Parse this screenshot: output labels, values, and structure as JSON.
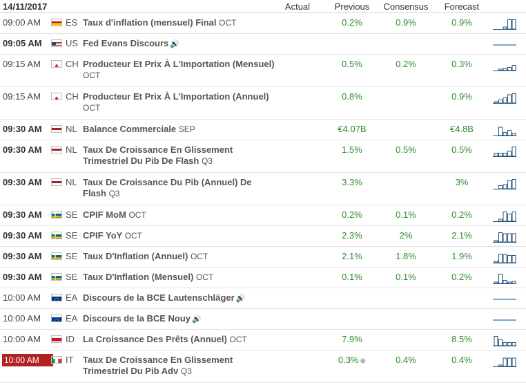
{
  "header": {
    "date": "14/11/2017",
    "actual": "Actual",
    "previous": "Previous",
    "consensus": "Consensus",
    "forecast": "Forecast"
  },
  "rows": [
    {
      "time": "09:00 AM",
      "bold": false,
      "badge": false,
      "flag": "es",
      "country": "ES",
      "event": "Taux d'inflation (mensuel) Final",
      "period": "OCT",
      "speaker": false,
      "previous": "0.2%",
      "consensus": "0.9%",
      "forecast": "0.9%",
      "chart": "bars",
      "bars": [
        0.2,
        0.9,
        0.9
      ],
      "two_line": false
    },
    {
      "time": "09:05 AM",
      "bold": true,
      "badge": false,
      "flag": "us",
      "country": "US",
      "event": "Fed Evans Discours",
      "period": "",
      "speaker": true,
      "previous": "",
      "consensus": "",
      "forecast": "",
      "chart": "line",
      "bars": [],
      "two_line": false
    },
    {
      "time": "09:15 AM",
      "bold": false,
      "badge": false,
      "flag": "ch",
      "country": "CH",
      "event": "Producteur Et Prix À L'Importation (Mensuel)",
      "period": "OCT",
      "speaker": false,
      "previous": "0.5%",
      "consensus": "0.2%",
      "forecast": "0.3%",
      "chart": "bars",
      "bars": [
        0.1,
        0.2,
        0.3,
        0.5
      ],
      "two_line": true
    },
    {
      "time": "09:15 AM",
      "bold": false,
      "badge": false,
      "flag": "ch",
      "country": "CH",
      "event": "Producteur Et Prix À L'Importation (Annuel)",
      "period": "OCT",
      "speaker": false,
      "previous": "0.8%",
      "consensus": "",
      "forecast": "0.9%",
      "chart": "bars",
      "bars": [
        0.1,
        0.3,
        0.5,
        0.8,
        0.9
      ],
      "two_line": true
    },
    {
      "time": "09:30 AM",
      "bold": true,
      "badge": false,
      "flag": "nl",
      "country": "NL",
      "event": "Balance Commerciale",
      "period": "SEP",
      "speaker": false,
      "previous": "€4.07B",
      "consensus": "",
      "forecast": "€4.8B",
      "chart": "bars",
      "bars": [
        0.8,
        0.3,
        0.5,
        0.2
      ],
      "two_line": false
    },
    {
      "time": "09:30 AM",
      "bold": true,
      "badge": false,
      "flag": "nl",
      "country": "NL",
      "event": "Taux De Croissance En Glissement Trimestriel Du Pib De Flash",
      "period": "Q3",
      "speaker": false,
      "previous": "1.5%",
      "consensus": "0.5%",
      "forecast": "0.5%",
      "chart": "bars",
      "bars": [
        0.3,
        0.3,
        0.3,
        0.5,
        0.9
      ],
      "two_line": true
    },
    {
      "time": "09:30 AM",
      "bold": true,
      "badge": false,
      "flag": "nl",
      "country": "NL",
      "event": "Taux De Croissance Du Pib (Annuel) De Flash",
      "period": "Q3",
      "speaker": false,
      "previous": "3.3%",
      "consensus": "",
      "forecast": "3%",
      "chart": "bars",
      "bars": [
        0.3,
        0.4,
        0.8,
        0.9
      ],
      "two_line": true
    },
    {
      "time": "09:30 AM",
      "bold": true,
      "badge": false,
      "flag": "se",
      "country": "SE",
      "event": "CPIF MoM",
      "period": "OCT",
      "speaker": false,
      "previous": "0.2%",
      "consensus": "0.1%",
      "forecast": "0.2%",
      "chart": "bars",
      "bars": [
        0.2,
        0.9,
        0.7,
        0.9
      ],
      "two_line": false
    },
    {
      "time": "09:30 AM",
      "bold": true,
      "badge": false,
      "flag": "se",
      "country": "SE",
      "event": "CPIF YoY",
      "period": "OCT",
      "speaker": false,
      "previous": "2.3%",
      "consensus": "2%",
      "forecast": "2.1%",
      "chart": "bars",
      "bars": [
        0.1,
        0.9,
        0.8,
        0.8,
        0.8
      ],
      "two_line": false
    },
    {
      "time": "09:30 AM",
      "bold": true,
      "badge": false,
      "flag": "se",
      "country": "SE",
      "event": "Taux D'Inflation (Annuel)",
      "period": "OCT",
      "speaker": false,
      "previous": "2.1%",
      "consensus": "1.8%",
      "forecast": "1.9%",
      "chart": "bars",
      "bars": [
        0.1,
        0.8,
        0.8,
        0.7,
        0.7
      ],
      "two_line": false
    },
    {
      "time": "09:30 AM",
      "bold": true,
      "badge": false,
      "flag": "se",
      "country": "SE",
      "event": "Taux D'Inflation (Mensuel)",
      "period": "OCT",
      "speaker": false,
      "previous": "0.1%",
      "consensus": "0.1%",
      "forecast": "0.2%",
      "chart": "bars",
      "bars": [
        0.1,
        0.9,
        0.3,
        0.1,
        0.2
      ],
      "two_line": false
    },
    {
      "time": "10:00 AM",
      "bold": false,
      "badge": false,
      "flag": "eu",
      "country": "EA",
      "event": "Discours de la BCE Lautenschläger",
      "period": "",
      "speaker": true,
      "previous": "",
      "consensus": "",
      "forecast": "",
      "chart": "line",
      "bars": [],
      "two_line": false
    },
    {
      "time": "10:00 AM",
      "bold": false,
      "badge": false,
      "flag": "eu",
      "country": "EA",
      "event": "Discours de la BCE Nouy",
      "period": "",
      "speaker": true,
      "previous": "",
      "consensus": "",
      "forecast": "",
      "chart": "line",
      "bars": [],
      "two_line": false
    },
    {
      "time": "10:00 AM",
      "bold": false,
      "badge": false,
      "flag": "id",
      "country": "ID",
      "event": "La Croissance Des Prêts (Annuel)",
      "period": "OCT",
      "speaker": false,
      "previous": "7.9%",
      "consensus": "",
      "forecast": "8.5%",
      "chart": "bars",
      "bars": [
        0.9,
        0.6,
        0.3,
        0.3,
        0.3
      ],
      "two_line": false
    },
    {
      "time": "10:00 AM",
      "bold": false,
      "badge": true,
      "flag": "it",
      "country": "IT",
      "event": "Taux De Croissance En Glissement Trimestriel Du Pib Adv",
      "period": "Q3",
      "speaker": false,
      "previous": "0.3%",
      "previous_revised": true,
      "consensus": "0.4%",
      "forecast": "0.4%",
      "chart": "bars",
      "bars": [
        0.1,
        0.8,
        0.8,
        0.8
      ],
      "two_line": true
    }
  ],
  "icons": {
    "speaker": "🔊",
    "revised": "⊛"
  },
  "colors": {
    "positive": "#2e8b2e",
    "chart_bar": "#1f4e79",
    "badge": "#b22222"
  }
}
